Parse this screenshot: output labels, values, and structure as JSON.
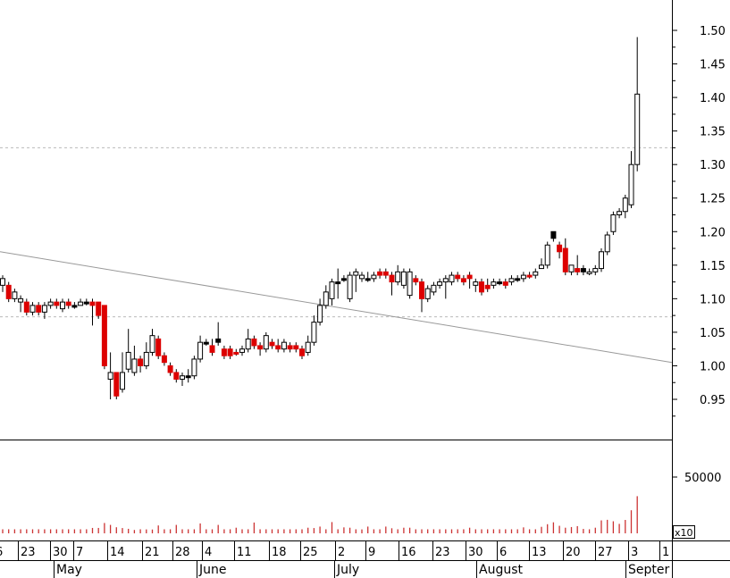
{
  "chart_data": {
    "type": "candlestick",
    "title": "",
    "price_axis": {
      "ylim": [
        0.9,
        1.54
      ],
      "ticks": [
        "0.95",
        "1.00",
        "1.05",
        "1.10",
        "1.15",
        "1.20",
        "1.25",
        "1.30",
        "1.35",
        "1.40",
        "1.45",
        "1.50"
      ]
    },
    "volume_axis": {
      "ylim": [
        0,
        67000
      ],
      "ticks": [
        "50000"
      ],
      "multiplier": "x10"
    },
    "reference_lines": [
      1.325,
      1.073
    ],
    "trendline": {
      "start": 1.17,
      "end": 1.005
    },
    "x_ticks": [
      "6",
      "23",
      "30",
      "7",
      "14",
      "21",
      "28",
      "4",
      "11",
      "18",
      "25",
      "2",
      "9",
      "16",
      "23",
      "30",
      "6",
      "13",
      "20",
      "27",
      "3",
      "1"
    ],
    "months": [
      "May",
      "June",
      "July",
      "August",
      "Septer"
    ],
    "colors": {
      "up": "#ffffff",
      "down": "#dd0000",
      "doji": "#000000",
      "volume": "#cc3333",
      "grid": "#bbbbbb"
    },
    "candles": [
      [
        1.13,
        1.12,
        1.135,
        1.11,
        0
      ],
      [
        1.12,
        1.1,
        1.125,
        1.095,
        1
      ],
      [
        1.1,
        1.11,
        1.115,
        1.095,
        0
      ],
      [
        1.095,
        1.1,
        1.105,
        1.08,
        0
      ],
      [
        1.095,
        1.08,
        1.1,
        1.075,
        1
      ],
      [
        1.08,
        1.09,
        1.095,
        1.075,
        0
      ],
      [
        1.09,
        1.08,
        1.095,
        1.075,
        1
      ],
      [
        1.08,
        1.09,
        1.095,
        1.07,
        0
      ],
      [
        1.09,
        1.095,
        1.1,
        1.085,
        0
      ],
      [
        1.095,
        1.09,
        1.1,
        1.085,
        1
      ],
      [
        1.085,
        1.095,
        1.1,
        1.08,
        0
      ],
      [
        1.095,
        1.09,
        1.1,
        1.085,
        1
      ],
      [
        1.09,
        1.09,
        1.095,
        1.085,
        2
      ],
      [
        1.09,
        1.095,
        1.1,
        1.09,
        0
      ],
      [
        1.095,
        1.095,
        1.1,
        1.09,
        2
      ],
      [
        1.095,
        1.09,
        1.1,
        1.06,
        1
      ],
      [
        1.095,
        1.075,
        1.095,
        1.07,
        1
      ],
      [
        1.09,
        1.0,
        1.09,
        0.995,
        1
      ],
      [
        0.98,
        0.99,
        1.02,
        0.95,
        0
      ],
      [
        0.99,
        0.955,
        0.99,
        0.95,
        1
      ],
      [
        0.965,
        0.99,
        1.02,
        0.96,
        0
      ],
      [
        0.995,
        1.02,
        1.055,
        0.99,
        0
      ],
      [
        0.99,
        1.01,
        1.03,
        0.985,
        0
      ],
      [
        1.01,
        1.0,
        1.015,
        0.99,
        1
      ],
      [
        1.0,
        1.02,
        1.035,
        0.995,
        0
      ],
      [
        1.02,
        1.045,
        1.055,
        1.015,
        0
      ],
      [
        1.04,
        1.015,
        1.045,
        1.01,
        1
      ],
      [
        1.015,
        1.005,
        1.02,
        1.0,
        1
      ],
      [
        1.0,
        0.99,
        1.005,
        0.985,
        1
      ],
      [
        0.99,
        0.98,
        0.995,
        0.975,
        1
      ],
      [
        0.98,
        0.985,
        0.99,
        0.97,
        0
      ],
      [
        0.985,
        0.985,
        0.995,
        0.975,
        2
      ],
      [
        0.985,
        1.01,
        1.015,
        0.98,
        0
      ],
      [
        1.01,
        1.035,
        1.045,
        1.005,
        0
      ],
      [
        1.035,
        1.035,
        1.04,
        1.03,
        2
      ],
      [
        1.03,
        1.02,
        1.04,
        1.015,
        1
      ],
      [
        1.04,
        1.035,
        1.065,
        1.03,
        2
      ],
      [
        1.025,
        1.015,
        1.03,
        1.01,
        1
      ],
      [
        1.025,
        1.015,
        1.03,
        1.01,
        1
      ],
      [
        1.02,
        1.02,
        1.025,
        1.015,
        1
      ],
      [
        1.02,
        1.025,
        1.03,
        1.015,
        0
      ],
      [
        1.025,
        1.04,
        1.055,
        1.02,
        0
      ],
      [
        1.04,
        1.03,
        1.045,
        1.025,
        1
      ],
      [
        1.03,
        1.025,
        1.035,
        1.015,
        1
      ],
      [
        1.025,
        1.045,
        1.05,
        1.02,
        0
      ],
      [
        1.035,
        1.03,
        1.04,
        1.025,
        1
      ],
      [
        1.03,
        1.025,
        1.04,
        1.02,
        1
      ],
      [
        1.025,
        1.035,
        1.04,
        1.02,
        0
      ],
      [
        1.03,
        1.025,
        1.035,
        1.02,
        1
      ],
      [
        1.03,
        1.025,
        1.035,
        1.02,
        1
      ],
      [
        1.025,
        1.015,
        1.03,
        1.01,
        1
      ],
      [
        1.02,
        1.035,
        1.045,
        1.015,
        0
      ],
      [
        1.035,
        1.065,
        1.075,
        1.03,
        0
      ],
      [
        1.065,
        1.09,
        1.1,
        1.06,
        0
      ],
      [
        1.09,
        1.11,
        1.12,
        1.085,
        0
      ],
      [
        1.1,
        1.125,
        1.13,
        1.09,
        0
      ],
      [
        1.125,
        1.125,
        1.145,
        1.1,
        2
      ],
      [
        1.13,
        1.13,
        1.135,
        1.125,
        2
      ],
      [
        1.1,
        1.135,
        1.14,
        1.095,
        0
      ],
      [
        1.135,
        1.14,
        1.145,
        1.11,
        0
      ],
      [
        1.135,
        1.13,
        1.14,
        1.125,
        0
      ],
      [
        1.13,
        1.13,
        1.14,
        1.125,
        2
      ],
      [
        1.13,
        1.135,
        1.14,
        1.125,
        0
      ],
      [
        1.14,
        1.135,
        1.145,
        1.13,
        1
      ],
      [
        1.14,
        1.135,
        1.145,
        1.13,
        1
      ],
      [
        1.135,
        1.125,
        1.14,
        1.105,
        1
      ],
      [
        1.125,
        1.14,
        1.15,
        1.12,
        0
      ],
      [
        1.14,
        1.12,
        1.145,
        1.115,
        0
      ],
      [
        1.14,
        1.105,
        1.145,
        1.1,
        0
      ],
      [
        1.13,
        1.125,
        1.135,
        1.12,
        1
      ],
      [
        1.125,
        1.1,
        1.13,
        1.08,
        1
      ],
      [
        1.1,
        1.115,
        1.12,
        1.095,
        0
      ],
      [
        1.11,
        1.12,
        1.125,
        1.105,
        0
      ],
      [
        1.12,
        1.125,
        1.13,
        1.115,
        0
      ],
      [
        1.125,
        1.13,
        1.135,
        1.1,
        0
      ],
      [
        1.125,
        1.135,
        1.14,
        1.12,
        0
      ],
      [
        1.135,
        1.13,
        1.14,
        1.125,
        1
      ],
      [
        1.13,
        1.125,
        1.135,
        1.12,
        1
      ],
      [
        1.13,
        1.135,
        1.14,
        1.115,
        1
      ],
      [
        1.12,
        1.125,
        1.13,
        1.11,
        0
      ],
      [
        1.125,
        1.11,
        1.13,
        1.105,
        1
      ],
      [
        1.115,
        1.12,
        1.13,
        1.11,
        1
      ],
      [
        1.12,
        1.125,
        1.13,
        1.115,
        0
      ],
      [
        1.125,
        1.125,
        1.13,
        1.12,
        2
      ],
      [
        1.12,
        1.125,
        1.13,
        1.115,
        1
      ],
      [
        1.125,
        1.13,
        1.135,
        1.12,
        0
      ],
      [
        1.13,
        1.13,
        1.135,
        1.125,
        2
      ],
      [
        1.13,
        1.135,
        1.14,
        1.125,
        0
      ],
      [
        1.135,
        1.135,
        1.14,
        1.13,
        1
      ],
      [
        1.135,
        1.14,
        1.145,
        1.13,
        0
      ],
      [
        1.145,
        1.15,
        1.16,
        1.145,
        0
      ],
      [
        1.15,
        1.18,
        1.185,
        1.145,
        0
      ],
      [
        1.19,
        1.2,
        1.2,
        1.185,
        2
      ],
      [
        1.18,
        1.17,
        1.185,
        1.16,
        1
      ],
      [
        1.175,
        1.14,
        1.19,
        1.135,
        1
      ],
      [
        1.15,
        1.14,
        1.15,
        1.135,
        0
      ],
      [
        1.14,
        1.145,
        1.165,
        1.135,
        1
      ],
      [
        1.145,
        1.14,
        1.15,
        1.135,
        2
      ],
      [
        1.14,
        1.14,
        1.145,
        1.135,
        0
      ],
      [
        1.14,
        1.145,
        1.15,
        1.135,
        0
      ],
      [
        1.145,
        1.17,
        1.175,
        1.14,
        0
      ],
      [
        1.17,
        1.195,
        1.2,
        1.165,
        0
      ],
      [
        1.2,
        1.225,
        1.23,
        1.195,
        0
      ],
      [
        1.225,
        1.23,
        1.235,
        1.22,
        0
      ],
      [
        1.23,
        1.25,
        1.255,
        1.22,
        0
      ],
      [
        1.24,
        1.3,
        1.32,
        1.235,
        0
      ],
      [
        1.3,
        1.405,
        1.49,
        1.29,
        0
      ]
    ],
    "volumes": [
      3600,
      3600,
      3600,
      3600,
      3600,
      3600,
      3600,
      3600,
      3600,
      3600,
      3600,
      3600,
      3600,
      3600,
      3600,
      4800,
      4800,
      9200,
      7500,
      5400,
      4700,
      4000,
      3000,
      3600,
      3500,
      3400,
      7000,
      3600,
      3600,
      7500,
      3600,
      3600,
      3600,
      8800,
      3600,
      3600,
      7500,
      3600,
      3600,
      5000,
      3600,
      3600,
      9600,
      3600,
      3600,
      3600,
      3600,
      3600,
      3600,
      3600,
      3600,
      5000,
      4700,
      6000,
      3600,
      10000,
      3600,
      5300,
      5000,
      3600,
      3500,
      6000,
      3600,
      3600,
      6000,
      4500,
      3600,
      5000,
      5000,
      3600,
      3600,
      3600,
      3600,
      3600,
      3600,
      3600,
      3600,
      3600,
      5000,
      3600,
      3600,
      3600,
      3600,
      3600,
      3600,
      3600,
      3600,
      5300,
      3600,
      3600,
      5800,
      8100,
      9800,
      6700,
      5000,
      5600,
      6400,
      3900,
      3600,
      5000,
      11500,
      12000,
      10700,
      8400,
      11900,
      20500,
      33000
    ]
  }
}
